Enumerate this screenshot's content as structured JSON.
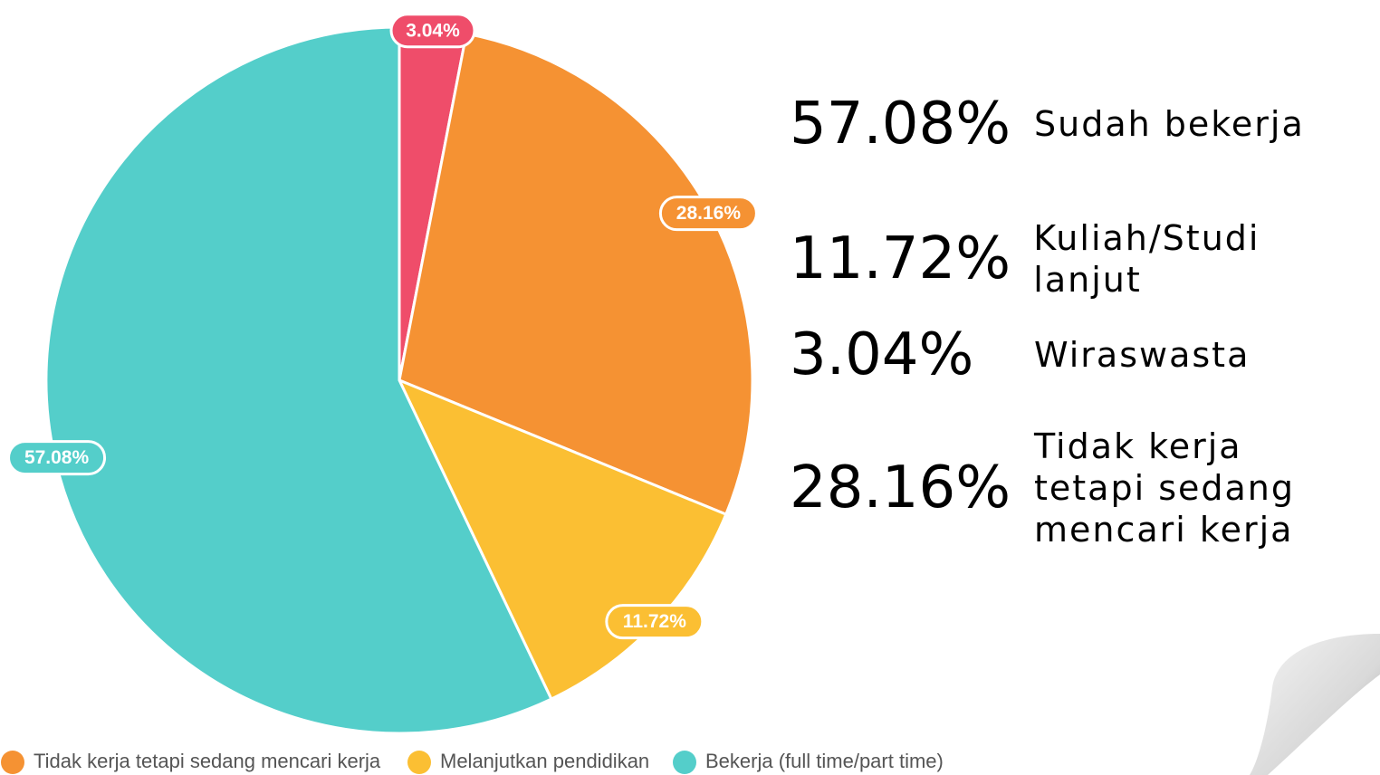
{
  "chart_data": {
    "type": "pie",
    "categories": [
      null,
      "Tidak kerja tetapi sedang mencari kerja",
      "Melanjutkan pendidikan",
      "Bekerja (full time/part time)"
    ],
    "values": [
      3.04,
      28.16,
      11.72,
      57.08
    ],
    "value_labels": [
      "3.04%",
      "28.16%",
      "11.72%",
      "57.08%"
    ],
    "colors": [
      "#ef4d6a",
      "#f59233",
      "#fbbf33",
      "#54ceca"
    ]
  },
  "summary": [
    {
      "percent": "57.08%",
      "label": "Sudah bekerja"
    },
    {
      "percent": "11.72%",
      "label": "Kuliah/Studi lanjut"
    },
    {
      "percent": "3.04%",
      "label": "Wiraswasta"
    },
    {
      "percent": "28.16%",
      "label": "Tidak kerja tetapi sedang mencari kerja"
    }
  ]
}
